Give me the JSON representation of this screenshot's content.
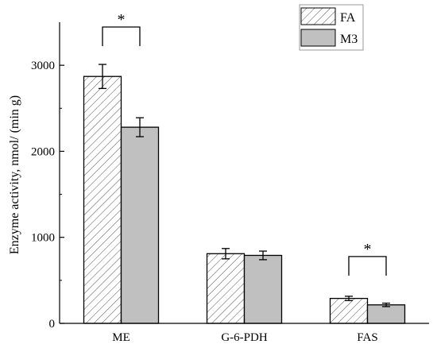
{
  "chart_data": {
    "type": "bar",
    "title": "",
    "xlabel": "",
    "ylabel": "Enzyme activity, nmol/ (min g)",
    "ylim": [
      0,
      3500
    ],
    "yticks": [
      0,
      1000,
      2000,
      3000
    ],
    "categories": [
      "ME",
      "G-6-PDH",
      "FAS"
    ],
    "series": [
      {
        "name": "FA",
        "values": [
          2870,
          810,
          290
        ],
        "errors": [
          140,
          60,
          25
        ],
        "fill": "hatched",
        "color": "#ffffff"
      },
      {
        "name": "M3",
        "values": [
          2280,
          790,
          215
        ],
        "errors": [
          110,
          50,
          20
        ],
        "fill": "solid",
        "color": "#c0c0c0"
      }
    ],
    "legend": {
      "position": "top-right",
      "entries": [
        "FA",
        "M3"
      ]
    },
    "significance": [
      {
        "category": "ME",
        "label": "*"
      },
      {
        "category": "FAS",
        "label": "*"
      }
    ],
    "grid": false
  }
}
